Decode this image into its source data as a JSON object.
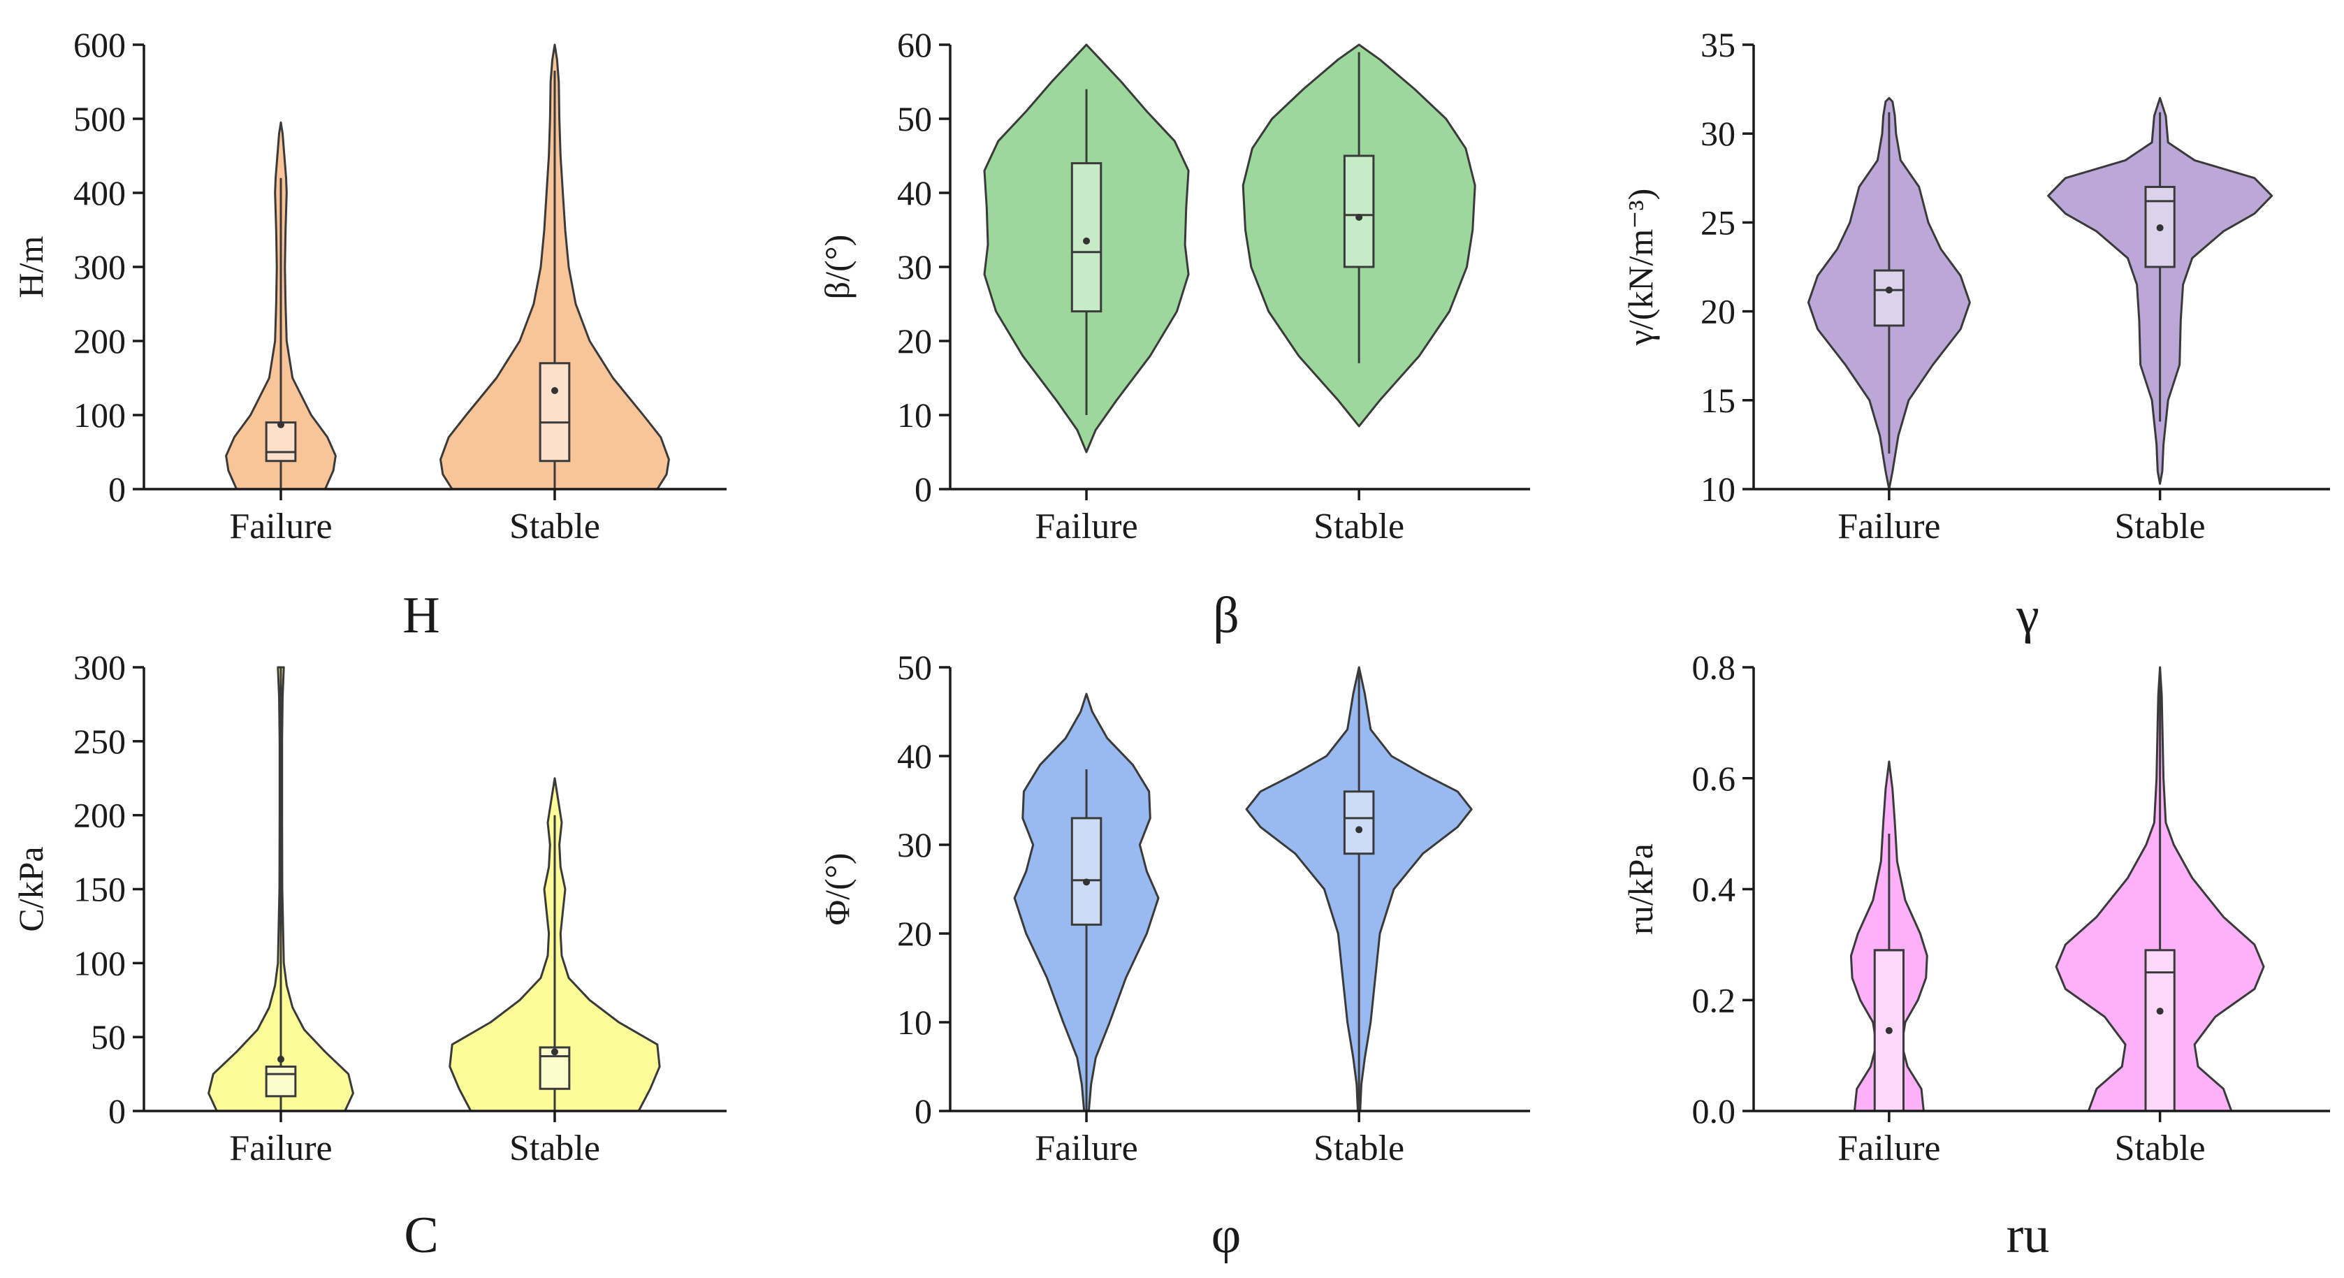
{
  "figure_title": "",
  "chart_data": [
    {
      "type": "violin",
      "caption": "H",
      "ylabel": "H/m",
      "ylim": [
        0,
        600
      ],
      "yticks": [
        0,
        100,
        200,
        300,
        400,
        500,
        600
      ],
      "categories": [
        "Failure",
        "Stable"
      ],
      "fill_color": "#F9C497",
      "box_fill": "#FCE0CA",
      "series": [
        {
          "name": "Failure",
          "violin": [
            [
              0,
              0.38
            ],
            [
              25,
              0.45
            ],
            [
              45,
              0.47
            ],
            [
              70,
              0.4
            ],
            [
              100,
              0.26
            ],
            [
              150,
              0.1
            ],
            [
              200,
              0.05
            ],
            [
              250,
              0.04
            ],
            [
              300,
              0.035
            ],
            [
              350,
              0.04
            ],
            [
              400,
              0.05
            ],
            [
              420,
              0.045
            ],
            [
              450,
              0.03
            ],
            [
              480,
              0.015
            ],
            [
              495,
              0
            ]
          ],
          "box": {
            "q1": 38,
            "median": 50,
            "q3": 90,
            "mean": 87,
            "whisker_low": 0,
            "whisker_high": 420
          }
        },
        {
          "name": "Stable",
          "violin": [
            [
              0,
              0.88
            ],
            [
              20,
              0.96
            ],
            [
              40,
              0.98
            ],
            [
              70,
              0.91
            ],
            [
              100,
              0.76
            ],
            [
              150,
              0.5
            ],
            [
              200,
              0.3
            ],
            [
              250,
              0.18
            ],
            [
              300,
              0.12
            ],
            [
              350,
              0.09
            ],
            [
              400,
              0.07
            ],
            [
              450,
              0.05
            ],
            [
              500,
              0.04
            ],
            [
              550,
              0.035
            ],
            [
              580,
              0.02
            ],
            [
              600,
              0
            ]
          ],
          "box": {
            "q1": 38,
            "median": 90,
            "q3": 170,
            "mean": 133,
            "whisker_low": 0,
            "whisker_high": 565
          }
        }
      ]
    },
    {
      "type": "violin",
      "caption": "β",
      "ylabel": "β/(°)",
      "ylim": [
        0,
        60
      ],
      "yticks": [
        0,
        10,
        20,
        30,
        40,
        50,
        60
      ],
      "categories": [
        "Failure",
        "Stable"
      ],
      "fill_color": "#9CD89C",
      "box_fill": "#C7EAC7",
      "series": [
        {
          "name": "Failure",
          "violin": [
            [
              5,
              0
            ],
            [
              8,
              0.08
            ],
            [
              12,
              0.26
            ],
            [
              18,
              0.55
            ],
            [
              24,
              0.78
            ],
            [
              29,
              0.88
            ],
            [
              33,
              0.85
            ],
            [
              38,
              0.86
            ],
            [
              43,
              0.88
            ],
            [
              47,
              0.76
            ],
            [
              51,
              0.52
            ],
            [
              55,
              0.3
            ],
            [
              58,
              0.12
            ],
            [
              60,
              0
            ]
          ],
          "box": {
            "q1": 24,
            "median": 32,
            "q3": 44,
            "mean": 33.5,
            "whisker_low": 10,
            "whisker_high": 54
          }
        },
        {
          "name": "Stable",
          "violin": [
            [
              8.5,
              0
            ],
            [
              12,
              0.18
            ],
            [
              18,
              0.52
            ],
            [
              24,
              0.78
            ],
            [
              30,
              0.93
            ],
            [
              35,
              0.98
            ],
            [
              41,
              1.0
            ],
            [
              46,
              0.92
            ],
            [
              50,
              0.75
            ],
            [
              54,
              0.48
            ],
            [
              58,
              0.18
            ],
            [
              60,
              0
            ]
          ],
          "box": {
            "q1": 30,
            "median": 37,
            "q3": 45,
            "mean": 36.7,
            "whisker_low": 17,
            "whisker_high": 59
          }
        }
      ]
    },
    {
      "type": "violin",
      "caption": "γ",
      "ylabel": "γ/(kN/m⁻³)",
      "ylim": [
        10,
        35
      ],
      "yticks": [
        10,
        15,
        20,
        25,
        30,
        35
      ],
      "categories": [
        "Failure",
        "Stable"
      ],
      "fill_color": "#BBA8D8",
      "box_fill": "#DCD2EC",
      "series": [
        {
          "name": "Failure",
          "violin": [
            [
              10,
              0
            ],
            [
              11,
              0.03
            ],
            [
              13,
              0.08
            ],
            [
              15,
              0.17
            ],
            [
              17,
              0.38
            ],
            [
              19,
              0.62
            ],
            [
              20.5,
              0.7
            ],
            [
              22,
              0.62
            ],
            [
              23.5,
              0.45
            ],
            [
              25,
              0.34
            ],
            [
              27,
              0.26
            ],
            [
              28.5,
              0.1
            ],
            [
              30,
              0.06
            ],
            [
              31,
              0.05
            ],
            [
              31.8,
              0.03
            ],
            [
              32,
              0
            ]
          ],
          "box": {
            "q1": 19.2,
            "median": 21.2,
            "q3": 22.3,
            "mean": 21.2,
            "whisker_low": 12,
            "whisker_high": 31.2
          }
        },
        {
          "name": "Stable",
          "violin": [
            [
              10.3,
              0
            ],
            [
              11,
              0.02
            ],
            [
              12.5,
              0.03
            ],
            [
              15,
              0.07
            ],
            [
              17,
              0.17
            ],
            [
              19.5,
              0.18
            ],
            [
              21.5,
              0.2
            ],
            [
              23,
              0.28
            ],
            [
              24.5,
              0.55
            ],
            [
              25.5,
              0.82
            ],
            [
              26.5,
              0.97
            ],
            [
              27.5,
              0.82
            ],
            [
              28.5,
              0.3
            ],
            [
              29.5,
              0.07
            ],
            [
              31,
              0.05
            ],
            [
              32,
              0
            ]
          ],
          "box": {
            "q1": 22.5,
            "median": 26.2,
            "q3": 27,
            "mean": 24.7,
            "whisker_low": 13.8,
            "whisker_high": 31.2
          }
        }
      ]
    },
    {
      "type": "violin",
      "caption": "C",
      "ylabel": "C/kPa",
      "ylim": [
        0,
        300
      ],
      "yticks": [
        0,
        50,
        100,
        150,
        200,
        250,
        300
      ],
      "categories": [
        "Failure",
        "Stable"
      ],
      "fill_color": "#FCFC98",
      "box_fill": "#FDFDCB",
      "series": [
        {
          "name": "Failure",
          "violin": [
            [
              0,
              0.55
            ],
            [
              12,
              0.62
            ],
            [
              25,
              0.58
            ],
            [
              40,
              0.38
            ],
            [
              55,
              0.2
            ],
            [
              70,
              0.1
            ],
            [
              85,
              0.05
            ],
            [
              100,
              0.025
            ],
            [
              150,
              0.012
            ],
            [
              200,
              0.01
            ],
            [
              250,
              0.01
            ],
            [
              280,
              0.015
            ],
            [
              300,
              0.025
            ]
          ],
          "box": {
            "q1": 10,
            "median": 25,
            "q3": 30,
            "mean": 35,
            "whisker_low": 0,
            "whisker_high": 300
          }
        },
        {
          "name": "Stable",
          "violin": [
            [
              0,
              0.72
            ],
            [
              15,
              0.82
            ],
            [
              30,
              0.9
            ],
            [
              45,
              0.88
            ],
            [
              60,
              0.55
            ],
            [
              75,
              0.3
            ],
            [
              90,
              0.12
            ],
            [
              105,
              0.06
            ],
            [
              120,
              0.05
            ],
            [
              135,
              0.07
            ],
            [
              150,
              0.09
            ],
            [
              165,
              0.05
            ],
            [
              180,
              0.04
            ],
            [
              195,
              0.06
            ],
            [
              210,
              0.03
            ],
            [
              225,
              0
            ]
          ],
          "box": {
            "q1": 15,
            "median": 37,
            "q3": 43,
            "mean": 40,
            "whisker_low": 0,
            "whisker_high": 200
          }
        }
      ]
    },
    {
      "type": "violin",
      "caption": "φ",
      "ylabel": "Φ/(°)",
      "ylim": [
        0,
        50
      ],
      "yticks": [
        0,
        10,
        20,
        30,
        40,
        50
      ],
      "categories": [
        "Failure",
        "Stable"
      ],
      "fill_color": "#99BAF0",
      "box_fill": "#CCDCF7",
      "series": [
        {
          "name": "Failure",
          "violin": [
            [
              0,
              0.02
            ],
            [
              3,
              0.04
            ],
            [
              6,
              0.08
            ],
            [
              10,
              0.2
            ],
            [
              15,
              0.34
            ],
            [
              20,
              0.52
            ],
            [
              24,
              0.62
            ],
            [
              27,
              0.52
            ],
            [
              30,
              0.46
            ],
            [
              33,
              0.55
            ],
            [
              36,
              0.54
            ],
            [
              39,
              0.4
            ],
            [
              42,
              0.18
            ],
            [
              45,
              0.05
            ],
            [
              47,
              0
            ]
          ],
          "box": {
            "q1": 21,
            "median": 26,
            "q3": 33,
            "mean": 25.8,
            "whisker_low": 0,
            "whisker_high": 38.5
          }
        },
        {
          "name": "Stable",
          "violin": [
            [
              0,
              0.01
            ],
            [
              3,
              0.02
            ],
            [
              6,
              0.05
            ],
            [
              10,
              0.1
            ],
            [
              15,
              0.14
            ],
            [
              20,
              0.18
            ],
            [
              25,
              0.3
            ],
            [
              29,
              0.55
            ],
            [
              32,
              0.85
            ],
            [
              34,
              0.97
            ],
            [
              36,
              0.85
            ],
            [
              38,
              0.55
            ],
            [
              40,
              0.28
            ],
            [
              43,
              0.1
            ],
            [
              47,
              0.05
            ],
            [
              50,
              0
            ]
          ],
          "box": {
            "q1": 29,
            "median": 33,
            "q3": 36,
            "mean": 31.7,
            "whisker_low": 0,
            "whisker_high": 50
          }
        }
      ]
    },
    {
      "type": "violin",
      "caption": "ru",
      "ylabel": "ru/kPa",
      "ylim": [
        0,
        0.8
      ],
      "yticks": [
        0,
        0.2,
        0.4,
        0.6,
        0.8
      ],
      "ytick_labels": [
        "0.0",
        "0.2",
        "0.4",
        "0.6",
        "0.8"
      ],
      "categories": [
        "Failure",
        "Stable"
      ],
      "fill_color": "#FCB1F8",
      "box_fill": "#FDD8FB",
      "series": [
        {
          "name": "Failure",
          "violin": [
            [
              0,
              0.3
            ],
            [
              0.04,
              0.28
            ],
            [
              0.08,
              0.16
            ],
            [
              0.12,
              0.11
            ],
            [
              0.16,
              0.14
            ],
            [
              0.2,
              0.25
            ],
            [
              0.24,
              0.32
            ],
            [
              0.28,
              0.33
            ],
            [
              0.32,
              0.27
            ],
            [
              0.38,
              0.14
            ],
            [
              0.45,
              0.07
            ],
            [
              0.52,
              0.05
            ],
            [
              0.58,
              0.03
            ],
            [
              0.63,
              0
            ]
          ],
          "box": {
            "q1": 0,
            "median": 0.29,
            "q3": 0.29,
            "mean": 0.145,
            "whisker_low": 0,
            "whisker_high": 0.5
          }
        },
        {
          "name": "Stable",
          "violin": [
            [
              0,
              0.62
            ],
            [
              0.04,
              0.55
            ],
            [
              0.08,
              0.33
            ],
            [
              0.12,
              0.3
            ],
            [
              0.17,
              0.48
            ],
            [
              0.22,
              0.82
            ],
            [
              0.26,
              0.9
            ],
            [
              0.3,
              0.82
            ],
            [
              0.35,
              0.55
            ],
            [
              0.42,
              0.28
            ],
            [
              0.48,
              0.12
            ],
            [
              0.52,
              0.05
            ],
            [
              0.6,
              0.03
            ],
            [
              0.7,
              0.02
            ],
            [
              0.75,
              0.015
            ],
            [
              0.8,
              0
            ]
          ],
          "box": {
            "q1": 0,
            "median": 0.25,
            "q3": 0.29,
            "mean": 0.18,
            "whisker_low": 0,
            "whisker_high": 0.8
          }
        }
      ]
    }
  ]
}
